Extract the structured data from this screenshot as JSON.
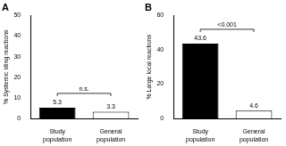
{
  "chart_data": [
    {
      "type": "bar",
      "title": "A",
      "y_label": "% Systemic sting reactions",
      "categories": [
        "Study population",
        "General population"
      ],
      "values": [
        5.3,
        3.3
      ],
      "colors": [
        "#000000",
        "#ffffff"
      ],
      "ylim": [
        0,
        50
      ],
      "yticks": [
        0,
        10,
        20,
        30,
        40,
        50
      ],
      "grid": false,
      "data_labels": true,
      "annotation": "n.s."
    },
    {
      "type": "bar",
      "title": "B",
      "y_label": "% Large local reactions",
      "categories": [
        "Study population",
        "General population"
      ],
      "values": [
        43.6,
        4.6
      ],
      "colors": [
        "#000000",
        "#ffffff"
      ],
      "ylim": [
        0,
        60
      ],
      "yticks": [
        0,
        20,
        40,
        60
      ],
      "grid": false,
      "data_labels": true,
      "annotation": "<0.001"
    }
  ]
}
